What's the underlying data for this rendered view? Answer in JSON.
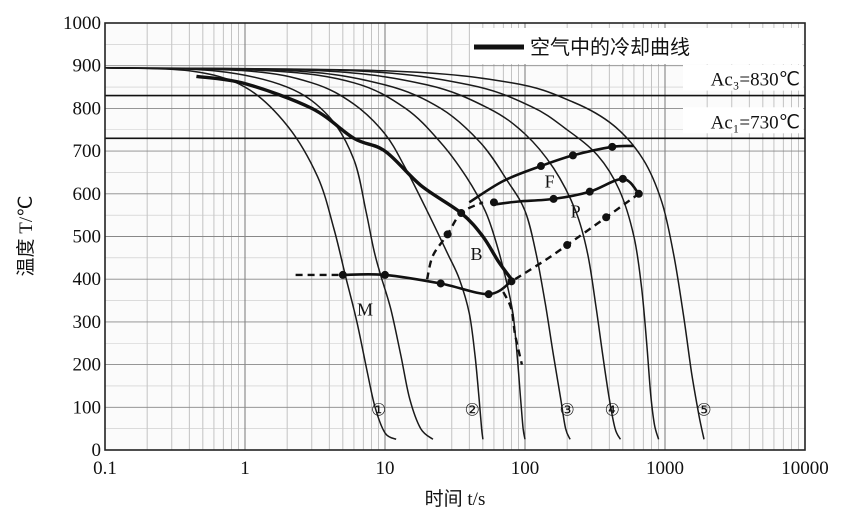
{
  "chart_data": {
    "type": "line",
    "x_scale": "log",
    "xlim": [
      0.1,
      10000
    ],
    "ylim": [
      0,
      1000
    ],
    "xlabel": "时间 t/s",
    "ylabel": "温度 T/℃",
    "x_ticks": [
      "0.1",
      "1",
      "10",
      "100",
      "1000",
      "10000"
    ],
    "y_ticks": [
      "0",
      "100",
      "200",
      "300",
      "400",
      "500",
      "600",
      "700",
      "800",
      "900",
      "1000"
    ],
    "x_tick_values": [
      0.1,
      1,
      10,
      100,
      1000,
      10000
    ],
    "y_tick_values": [
      0,
      100,
      200,
      300,
      400,
      500,
      600,
      700,
      800,
      900,
      1000
    ],
    "grid": true,
    "legend": {
      "label": "空气中的冷却曲线",
      "placement": "top-right"
    },
    "reference_lines": [
      {
        "label": "Ac₃=830℃",
        "y": 830
      },
      {
        "label": "Ac₁=730℃",
        "y": 730
      }
    ],
    "phase_labels": [
      {
        "text": "F",
        "x": 150,
        "y": 615
      },
      {
        "text": "P",
        "x": 230,
        "y": 545
      },
      {
        "text": "B",
        "x": 45,
        "y": 445
      },
      {
        "text": "M",
        "x": 7.2,
        "y": 315
      }
    ],
    "curve_labels": [
      {
        "text": "①",
        "x": 9,
        "y": 100
      },
      {
        "text": "②",
        "x": 42,
        "y": 100
      },
      {
        "text": "③",
        "x": 200,
        "y": 100
      },
      {
        "text": "④",
        "x": 420,
        "y": 100
      },
      {
        "text": "⑤",
        "x": 1900,
        "y": 100
      }
    ],
    "cooling_curves": [
      {
        "points": [
          [
            0.1,
            895
          ],
          [
            0.4,
            888
          ],
          [
            1,
            850
          ],
          [
            2,
            760
          ],
          [
            3.3,
            640
          ],
          [
            4.3,
            520
          ],
          [
            5.2,
            410
          ],
          [
            6.3,
            300
          ],
          [
            7.5,
            180
          ],
          [
            8.5,
            100
          ],
          [
            10,
            40
          ],
          [
            12,
            25
          ]
        ]
      },
      {
        "points": [
          [
            0.1,
            895
          ],
          [
            0.6,
            888
          ],
          [
            2,
            850
          ],
          [
            4,
            780
          ],
          [
            6,
            680
          ],
          [
            7.3,
            560
          ],
          [
            8.3,
            470
          ],
          [
            9.3,
            410
          ],
          [
            11,
            330
          ],
          [
            13,
            220
          ],
          [
            15,
            120
          ],
          [
            18,
            50
          ],
          [
            22,
            25
          ]
        ]
      },
      {
        "points": [
          [
            0.1,
            895
          ],
          [
            1,
            888
          ],
          [
            3,
            860
          ],
          [
            6,
            810
          ],
          [
            10,
            740
          ],
          [
            14,
            660
          ],
          [
            20,
            560
          ],
          [
            28,
            460
          ],
          [
            34,
            400
          ],
          [
            40,
            320
          ],
          [
            44,
            220
          ],
          [
            47,
            120
          ],
          [
            49,
            50
          ],
          [
            50,
            25
          ]
        ]
      },
      {
        "points": [
          [
            0.1,
            895
          ],
          [
            1.5,
            888
          ],
          [
            6,
            860
          ],
          [
            14,
            800
          ],
          [
            25,
            720
          ],
          [
            38,
            640
          ],
          [
            52,
            560
          ],
          [
            63,
            480
          ],
          [
            73,
            400
          ],
          [
            82,
            320
          ],
          [
            88,
            220
          ],
          [
            93,
            120
          ],
          [
            97,
            50
          ],
          [
            100,
            25
          ]
        ]
      },
      {
        "points": [
          [
            0.1,
            895
          ],
          [
            2.2,
            888
          ],
          [
            10,
            855
          ],
          [
            25,
            800
          ],
          [
            48,
            720
          ],
          [
            75,
            630
          ],
          [
            100,
            560
          ],
          [
            120,
            460
          ],
          [
            140,
            340
          ],
          [
            160,
            220
          ],
          [
            180,
            120
          ],
          [
            195,
            50
          ],
          [
            210,
            25
          ]
        ]
      },
      {
        "points": [
          [
            0.1,
            895
          ],
          [
            3.5,
            888
          ],
          [
            20,
            855
          ],
          [
            55,
            800
          ],
          [
            100,
            740
          ],
          [
            160,
            660
          ],
          [
            230,
            560
          ],
          [
            280,
            460
          ],
          [
            320,
            340
          ],
          [
            360,
            220
          ],
          [
            400,
            120
          ],
          [
            440,
            50
          ],
          [
            480,
            25
          ]
        ]
      },
      {
        "points": [
          [
            0.1,
            895
          ],
          [
            6,
            888
          ],
          [
            40,
            855
          ],
          [
            110,
            805
          ],
          [
            200,
            750
          ],
          [
            330,
            690
          ],
          [
            470,
            610
          ],
          [
            600,
            500
          ],
          [
            680,
            380
          ],
          [
            740,
            250
          ],
          [
            790,
            130
          ],
          [
            840,
            60
          ],
          [
            900,
            25
          ]
        ]
      },
      {
        "points": [
          [
            0.1,
            895
          ],
          [
            10,
            888
          ],
          [
            80,
            860
          ],
          [
            220,
            815
          ],
          [
            430,
            760
          ],
          [
            700,
            680
          ],
          [
            950,
            580
          ],
          [
            1150,
            460
          ],
          [
            1350,
            320
          ],
          [
            1550,
            180
          ],
          [
            1750,
            80
          ],
          [
            1900,
            25
          ]
        ]
      }
    ],
    "air_cooling_curve": {
      "name": "空气中的冷却曲线",
      "points": [
        [
          0.45,
          875
        ],
        [
          1,
          858
        ],
        [
          3,
          800
        ],
        [
          6,
          730
        ],
        [
          10,
          700
        ],
        [
          18,
          620
        ],
        [
          35,
          555
        ],
        [
          50,
          500
        ],
        [
          65,
          440
        ],
        [
          80,
          400
        ]
      ]
    },
    "transformation_boundaries": {
      "ferrite_start": [
        [
          40,
          580
        ],
        [
          70,
          630
        ],
        [
          130,
          665
        ],
        [
          220,
          690
        ],
        [
          420,
          710
        ],
        [
          600,
          712
        ]
      ],
      "ferrite_finish_pearlite_start": [
        [
          60,
          575
        ],
        [
          90,
          582
        ],
        [
          160,
          588
        ],
        [
          290,
          605
        ],
        [
          500,
          635
        ],
        [
          650,
          600
        ]
      ],
      "pearlite_finish": [
        [
          85,
          400
        ],
        [
          140,
          445
        ],
        [
          200,
          480
        ],
        [
          380,
          545
        ],
        [
          650,
          600
        ]
      ],
      "bainite_start": [
        [
          20,
          400
        ],
        [
          22,
          455
        ],
        [
          28,
          505
        ],
        [
          35,
          555
        ],
        [
          50,
          580
        ]
      ],
      "bainite_finish": [
        [
          5,
          410
        ],
        [
          10,
          410
        ],
        [
          25,
          390
        ],
        [
          55,
          365
        ],
        [
          80,
          395
        ]
      ],
      "ms_line_dashed": [
        [
          2.3,
          410
        ],
        [
          5,
          410
        ]
      ],
      "tail_dashed": [
        [
          70,
          370
        ],
        [
          80,
          330
        ],
        [
          85,
          270
        ],
        [
          95,
          200
        ]
      ]
    },
    "marked_points": [
      [
        5,
        410
      ],
      [
        10,
        410
      ],
      [
        25,
        390
      ],
      [
        55,
        365
      ],
      [
        80,
        395
      ],
      [
        28,
        505
      ],
      [
        35,
        555
      ],
      [
        60,
        580
      ],
      [
        130,
        665
      ],
      [
        220,
        690
      ],
      [
        160,
        588
      ],
      [
        290,
        605
      ],
      [
        500,
        635
      ],
      [
        650,
        600
      ],
      [
        200,
        480
      ],
      [
        380,
        545
      ],
      [
        420,
        710
      ]
    ]
  }
}
